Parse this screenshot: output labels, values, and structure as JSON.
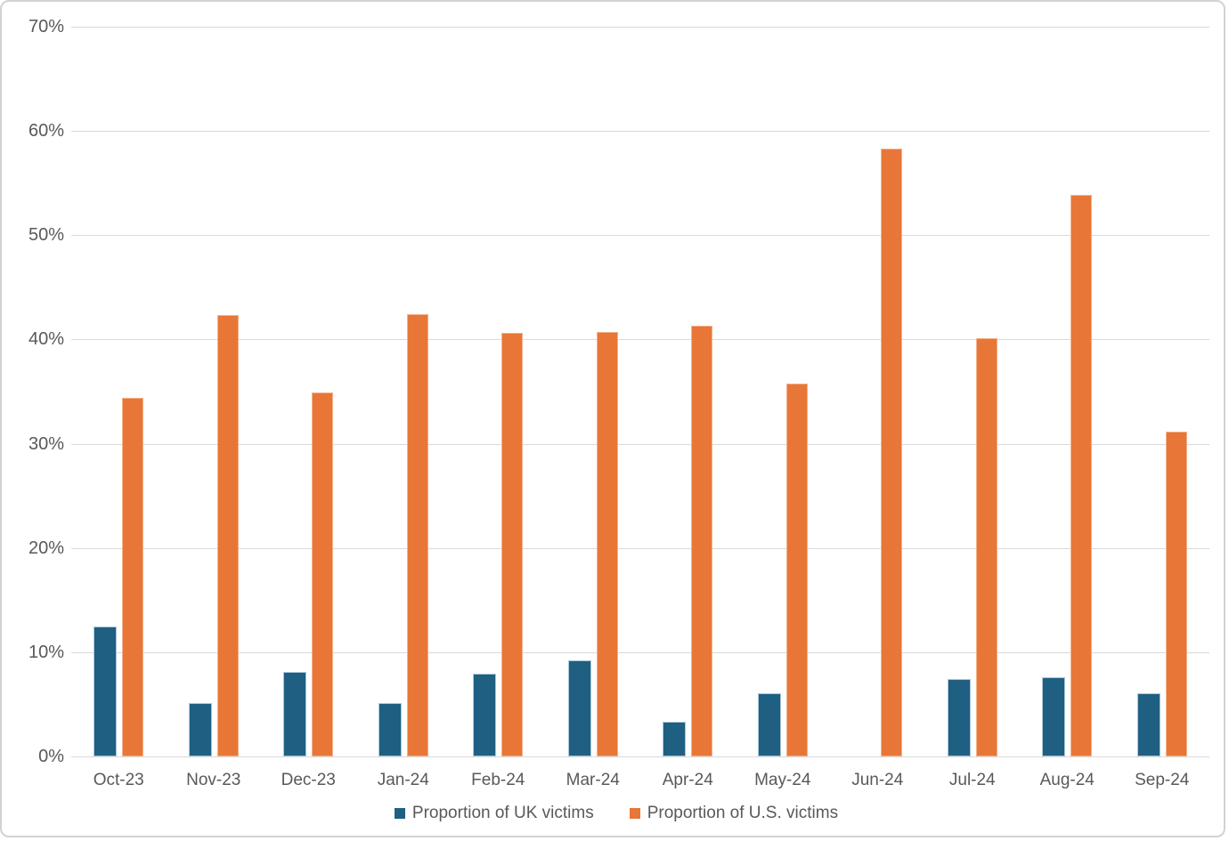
{
  "chart_data": {
    "type": "bar",
    "title": "",
    "xlabel": "",
    "ylabel": "",
    "categories": [
      "Oct-23",
      "Nov-23",
      "Dec-23",
      "Jan-24",
      "Feb-24",
      "Mar-24",
      "Apr-24",
      "May-24",
      "Jun-24",
      "Jul-24",
      "Aug-24",
      "Sep-24"
    ],
    "series": [
      {
        "name": "Proportion of UK victims",
        "color": "#1e5f82",
        "values": [
          12.5,
          5.1,
          8.1,
          5.1,
          7.9,
          9.2,
          3.3,
          6.1,
          0,
          7.4,
          7.6,
          6.1
        ]
      },
      {
        "name": "Proportion of U.S. victims",
        "color": "#e87636",
        "values": [
          34.4,
          42.3,
          34.9,
          42.4,
          40.6,
          40.7,
          41.3,
          35.8,
          58.3,
          40.1,
          53.9,
          31.2
        ]
      }
    ],
    "ylim": [
      0,
      70
    ],
    "ytick_step": 10,
    "ytick_labels": [
      "0%",
      "10%",
      "20%",
      "30%",
      "40%",
      "50%",
      "60%",
      "70%"
    ],
    "grid": true,
    "legend_position": "bottom",
    "axis_text_color": "#595959",
    "gridline_color": "#d9d9d9"
  }
}
